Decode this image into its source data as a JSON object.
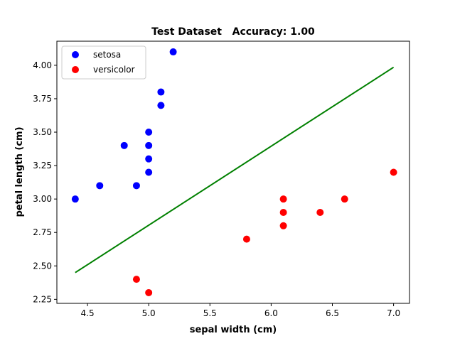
{
  "chart_data": {
    "type": "scatter",
    "title": "Test Dataset   Accuracy: 1.00",
    "xlabel": "sepal width (cm)",
    "ylabel": "petal length (cm)",
    "xlim": [
      4.25,
      7.13
    ],
    "ylim": [
      2.22,
      4.18
    ],
    "x_ticks": [
      4.5,
      5.0,
      5.5,
      6.0,
      6.5,
      7.0
    ],
    "y_ticks": [
      2.25,
      2.5,
      2.75,
      3.0,
      3.25,
      3.5,
      3.75,
      4.0
    ],
    "x_tick_labels": [
      "4.5",
      "5.0",
      "5.5",
      "6.0",
      "6.5",
      "7.0"
    ],
    "y_tick_labels": [
      "2.25",
      "2.50",
      "2.75",
      "3.00",
      "3.25",
      "3.50",
      "3.75",
      "4.00"
    ],
    "grid": false,
    "legend_position": "top-left",
    "series": [
      {
        "name": "setosa",
        "color": "#0000ff",
        "points": [
          [
            4.4,
            3.0
          ],
          [
            4.6,
            3.1
          ],
          [
            4.8,
            3.4
          ],
          [
            4.9,
            3.1
          ],
          [
            5.0,
            3.2
          ],
          [
            5.0,
            3.3
          ],
          [
            5.0,
            3.4
          ],
          [
            5.0,
            3.5
          ],
          [
            5.1,
            3.7
          ],
          [
            5.1,
            3.8
          ],
          [
            5.2,
            4.1
          ]
        ]
      },
      {
        "name": "versicolor",
        "color": "#ff0000",
        "points": [
          [
            4.9,
            2.4
          ],
          [
            5.0,
            2.3
          ],
          [
            5.8,
            2.7
          ],
          [
            6.1,
            2.8
          ],
          [
            6.1,
            2.9
          ],
          [
            6.1,
            3.0
          ],
          [
            6.4,
            2.9
          ],
          [
            6.6,
            3.0
          ],
          [
            7.0,
            3.2
          ]
        ]
      }
    ],
    "decision_boundary": {
      "color": "#008000",
      "points": [
        [
          4.4,
          2.45
        ],
        [
          7.0,
          3.985
        ]
      ]
    }
  }
}
